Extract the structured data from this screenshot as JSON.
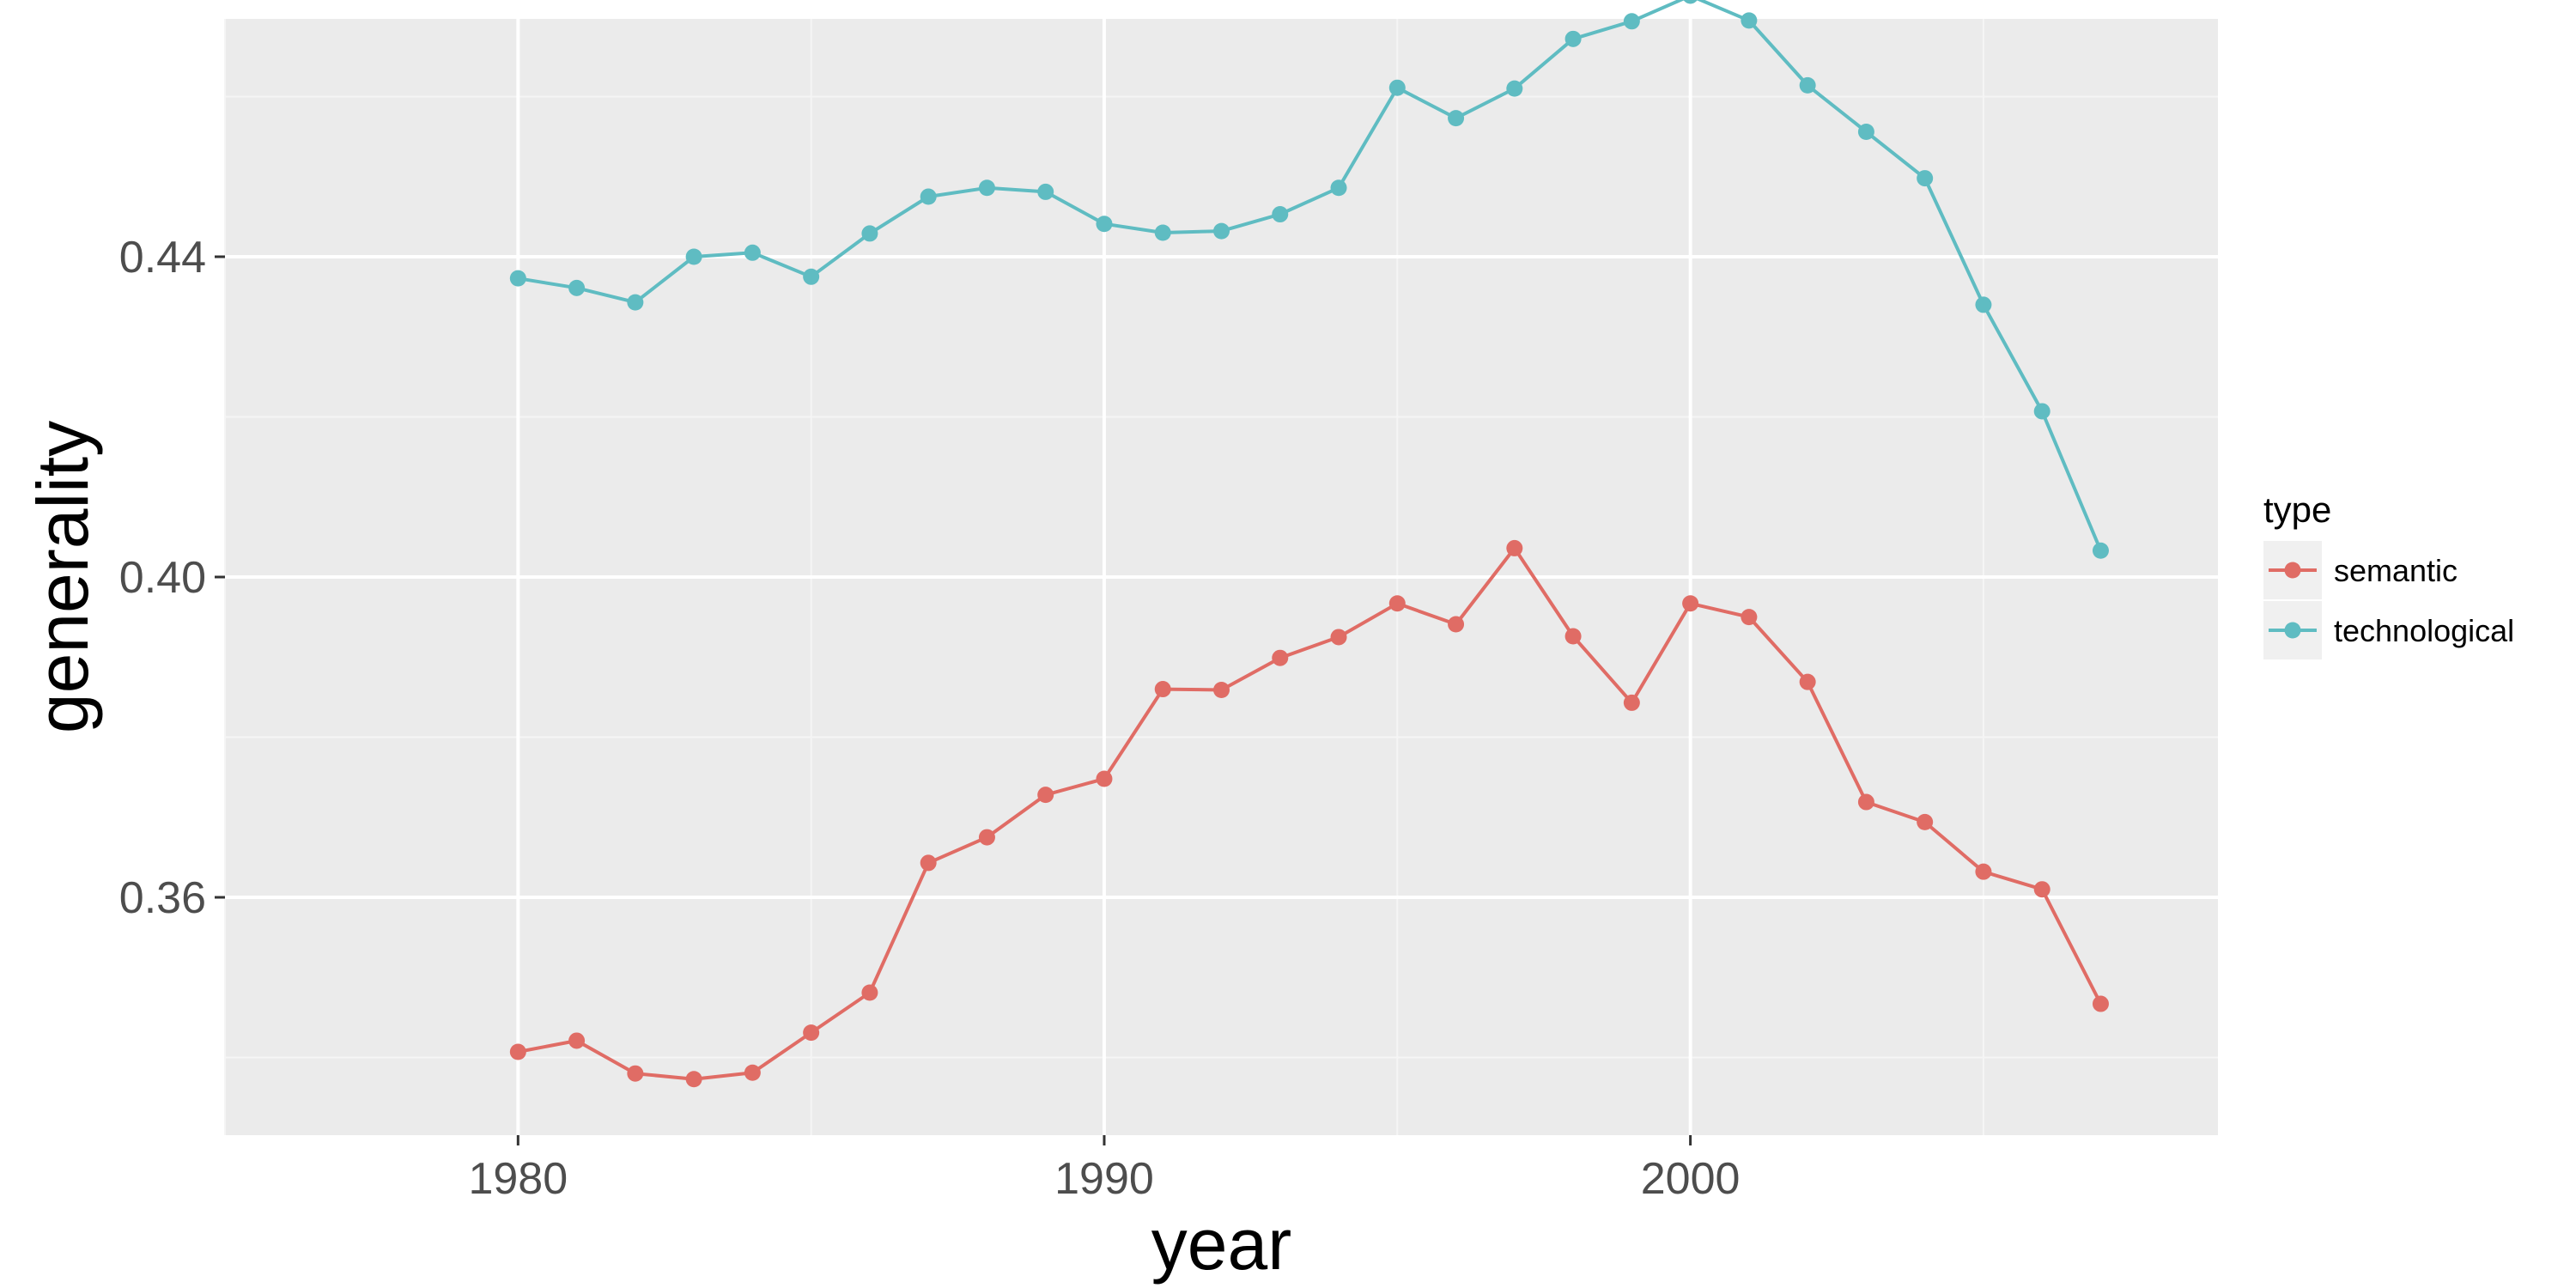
{
  "colors": {
    "panel": "#ebebeb",
    "grid_major": "#ffffff",
    "grid_minor": "#f5f5f5",
    "semantic": "#e06c65",
    "technological": "#5fbcc2",
    "legend_key_bg": "#f0f0f0"
  },
  "chart_data": {
    "type": "line",
    "xlabel": "year",
    "ylabel": "generality",
    "xlim": [
      1975,
      2009
    ],
    "ylim": [
      0.3303,
      0.4697
    ],
    "x_ticks": [
      1980,
      1990,
      2000
    ],
    "x_tick_labels": [
      "1980",
      "1990",
      "2000"
    ],
    "x_minor_ticks": [
      1975,
      1985,
      1995,
      2005
    ],
    "y_ticks": [
      0.36,
      0.4,
      0.44
    ],
    "y_tick_labels": [
      "0.36",
      "0.40",
      "0.44"
    ],
    "y_minor_ticks": [
      0.34,
      0.38,
      0.42,
      0.46
    ],
    "grid": true,
    "legend": {
      "title": "type",
      "position": "right"
    },
    "x": [
      1980,
      1981,
      1982,
      1983,
      1984,
      1985,
      1986,
      1987,
      1988,
      1989,
      1990,
      1991,
      1992,
      1993,
      1994,
      1995,
      1996,
      1997,
      1998,
      1999,
      2000,
      2001,
      2002,
      2003,
      2004,
      2005,
      2006,
      2007
    ],
    "series": [
      {
        "name": "semantic",
        "color": "#e06c65",
        "values": [
          0.3407,
          0.3421,
          0.338,
          0.3373,
          0.3381,
          0.3431,
          0.3481,
          0.3643,
          0.3675,
          0.3728,
          0.3748,
          0.386,
          0.3859,
          0.3899,
          0.3925,
          0.3967,
          0.3941,
          0.4036,
          0.3926,
          0.3843,
          0.3967,
          0.395,
          0.3869,
          0.3719,
          0.3694,
          0.3632,
          0.361,
          0.3467
        ]
      },
      {
        "name": "technological",
        "color": "#5fbcc2",
        "values": [
          0.4373,
          0.4361,
          0.4343,
          0.44,
          0.4405,
          0.4375,
          0.4429,
          0.4475,
          0.4486,
          0.4481,
          0.4441,
          0.443,
          0.4432,
          0.4453,
          0.4486,
          0.4611,
          0.4573,
          0.461,
          0.4672,
          0.4694,
          0.4726,
          0.4695,
          0.4614,
          0.4556,
          0.4498,
          0.434,
          0.4207,
          0.4033
        ]
      }
    ]
  }
}
